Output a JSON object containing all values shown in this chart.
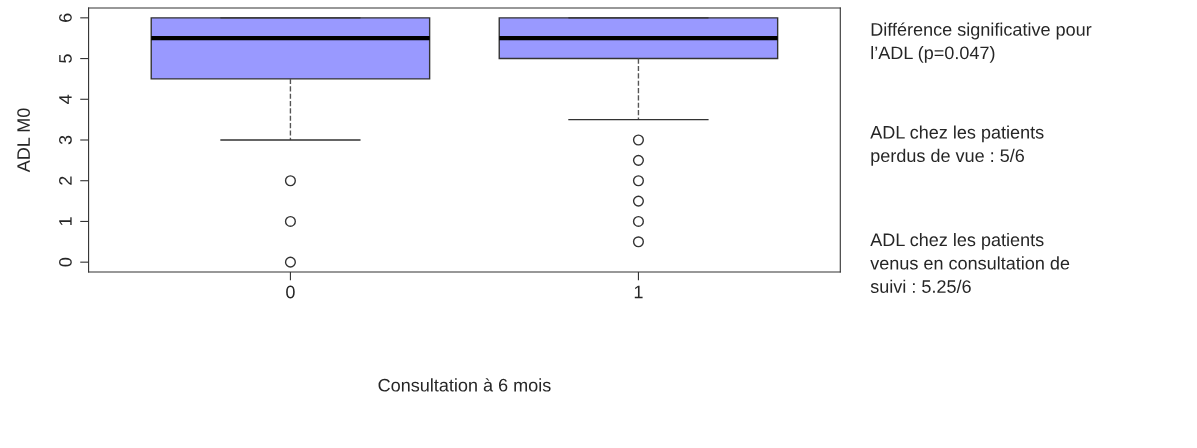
{
  "chart_data": {
    "type": "box",
    "xlabel": "Consultation à 6 mois",
    "ylabel": "ADL M0",
    "categories": [
      "0",
      "1"
    ],
    "boxes": [
      {
        "low": 3,
        "q1": 4.5,
        "median": 5.5,
        "q3": 6,
        "high": 6,
        "outliers": [
          2,
          1,
          0
        ]
      },
      {
        "low": 3.5,
        "q1": 5,
        "median": 5.5,
        "q3": 6,
        "high": 6,
        "outliers": [
          3,
          2.5,
          2,
          1.5,
          1,
          0.5
        ]
      }
    ],
    "color": "#9999ff",
    "ylim": [
      -0.24,
      6.24
    ],
    "yticks": [
      0,
      1,
      2,
      3,
      4,
      5,
      6
    ],
    "grid": false,
    "annotations": [
      "Différence significative pour\nl’ADL (p=0.047)",
      "ADL chez les patients\nperdus de vue : 5/6",
      "ADL chez les patients\nvenus en consultation de\nsuivi : 5.25/6"
    ]
  }
}
